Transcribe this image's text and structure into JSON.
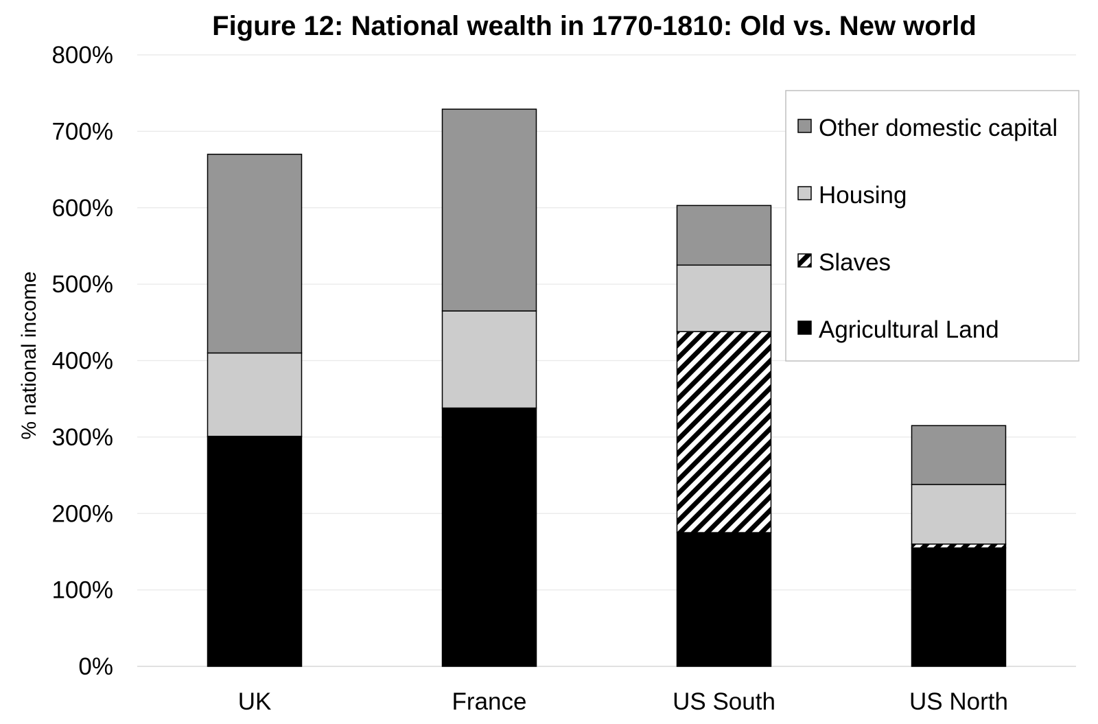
{
  "chart_data": {
    "type": "bar",
    "stacked": true,
    "title": "Figure 12: National wealth in 1770-1810: Old vs. New world",
    "xlabel": "",
    "ylabel": "% national income",
    "ylim": [
      0,
      800
    ],
    "ytick_values": [
      0,
      100,
      200,
      300,
      400,
      500,
      600,
      700,
      800
    ],
    "ytick_labels": [
      "0%",
      "100%",
      "200%",
      "300%",
      "400%",
      "500%",
      "600%",
      "700%",
      "800%"
    ],
    "grid": true,
    "legend_position": "top-right",
    "categories": [
      "UK",
      "France",
      "US South",
      "US North"
    ],
    "series": [
      {
        "name": "Agricultural Land",
        "values": [
          301,
          338,
          175,
          155
        ],
        "color": "#000000",
        "pattern": "solid"
      },
      {
        "name": "Slaves",
        "values": [
          0,
          0,
          263,
          5
        ],
        "color": "#000000",
        "pattern": "diagonal-hatch"
      },
      {
        "name": "Housing",
        "values": [
          109,
          127,
          87,
          78
        ],
        "color": "#cccccc",
        "pattern": "solid"
      },
      {
        "name": "Other domestic capital",
        "values": [
          260,
          264,
          78,
          77
        ],
        "color": "#969696",
        "pattern": "solid"
      }
    ],
    "legend_order": [
      "Other domestic capital",
      "Housing",
      "Slaves",
      "Agricultural Land"
    ]
  }
}
